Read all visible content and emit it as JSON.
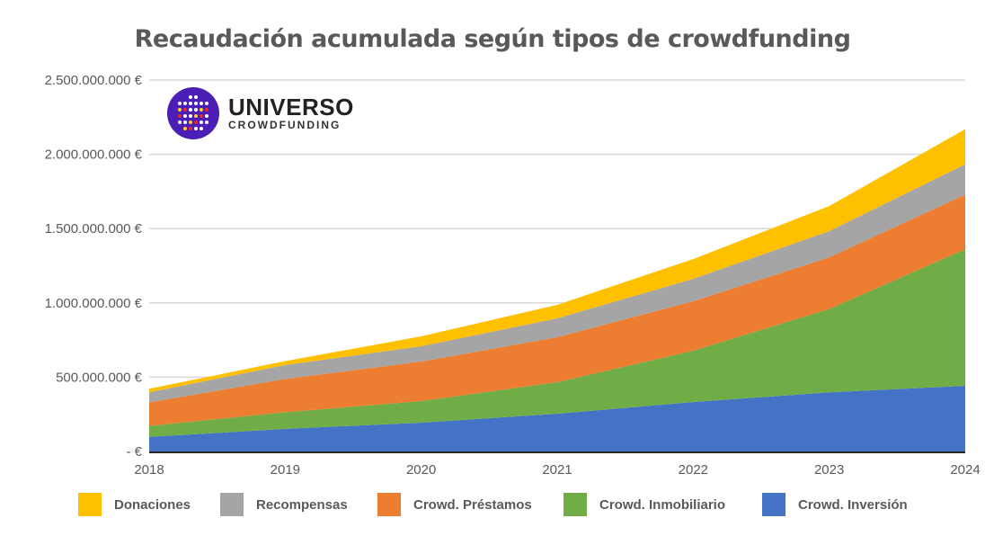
{
  "logo": {
    "line1": "UNIVERSO",
    "line2": "CROWDFUNDING"
  },
  "chart_data": {
    "type": "area",
    "stacked": true,
    "title": "Recaudación acumulada según tipos de crowdfunding",
    "xlabel": "",
    "ylabel": "",
    "categories": [
      "2018",
      "2019",
      "2020",
      "2021",
      "2022",
      "2023",
      "2024"
    ],
    "ylim": [
      0,
      2500000000
    ],
    "yticks": [
      {
        "value": 0,
        "label": "-   €"
      },
      {
        "value": 500000000,
        "label": "500.000.000 €"
      },
      {
        "value": 1000000000,
        "label": "1.000.000.000 €"
      },
      {
        "value": 1500000000,
        "label": "1.500.000.000 €"
      },
      {
        "value": 2000000000,
        "label": "2.000.000.000 €"
      },
      {
        "value": 2500000000,
        "label": "2.500.000.000 €"
      }
    ],
    "grid": true,
    "legend": "bottom",
    "series": [
      {
        "name": "Crowd. Inversión",
        "color": "#4472C4",
        "values": [
          98000000,
          152000000,
          194000000,
          254000000,
          333000000,
          398000000,
          442000000
        ]
      },
      {
        "name": "Crowd. Inmobiliario",
        "color": "#70AD47",
        "values": [
          74000000,
          112000000,
          145000000,
          212000000,
          345000000,
          561000000,
          919000000
        ]
      },
      {
        "name": "Crowd. Préstamos",
        "color": "#ED7D31",
        "values": [
          158000000,
          224000000,
          266000000,
          303000000,
          333000000,
          348000000,
          368000000
        ]
      },
      {
        "name": "Recompensas",
        "color": "#A5A5A5",
        "values": [
          68000000,
          94000000,
          103000000,
          127000000,
          151000000,
          176000000,
          204000000
        ]
      },
      {
        "name": "Donaciones",
        "color": "#FFC000",
        "values": [
          24000000,
          26000000,
          67000000,
          91000000,
          133000000,
          169000000,
          236000000
        ]
      }
    ]
  }
}
